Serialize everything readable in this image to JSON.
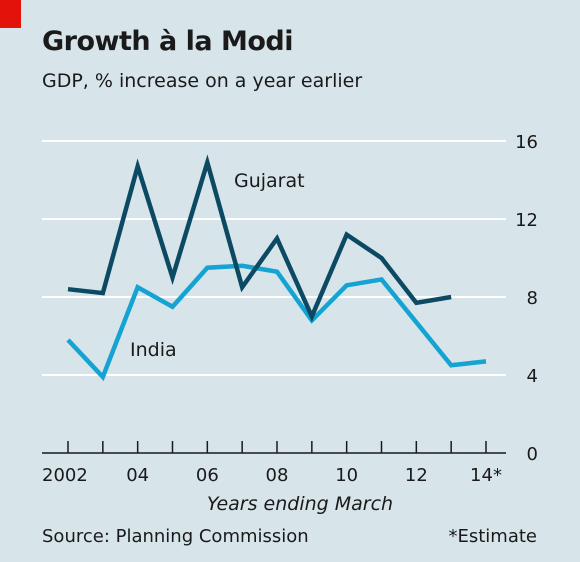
{
  "header": {
    "title": "Growth à la Modi",
    "subtitle": "GDP, % increase on a year earlier"
  },
  "footer": {
    "source": "Source: Planning Commission",
    "note": "*Estimate"
  },
  "colors": {
    "background": "#d7e4ea",
    "accent_tab": "#e3120b",
    "gujarat": "#0c4a63",
    "india": "#14a3d2",
    "gridline": "#ffffff",
    "axis": "#1a1a1a"
  },
  "chart_data": {
    "type": "line",
    "title": "Growth à la Modi",
    "subtitle": "GDP, % increase on a year earlier",
    "xlabel": "Years ending March",
    "ylabel": "",
    "x": [
      2002,
      2003,
      2004,
      2005,
      2006,
      2007,
      2008,
      2009,
      2010,
      2011,
      2012,
      2013,
      2014
    ],
    "xlim": [
      2002,
      2014
    ],
    "ylim": [
      0,
      16
    ],
    "yticks": [
      0,
      4,
      8,
      12,
      16
    ],
    "ytick_labels": [
      "0",
      "4",
      "8",
      "12",
      "16"
    ],
    "xticks": [
      2002,
      2004,
      2006,
      2008,
      2010,
      2012,
      2014
    ],
    "xtick_labels": [
      "2002",
      "04",
      "06",
      "08",
      "10",
      "12",
      "14*"
    ],
    "grid": true,
    "legend": "inline labels",
    "series": [
      {
        "name": "Gujarat",
        "x": [
          2002,
          2003,
          2004,
          2005,
          2006,
          2007,
          2008,
          2009,
          2010,
          2011,
          2012,
          2013
        ],
        "values": [
          8.4,
          8.2,
          14.7,
          9.0,
          14.9,
          8.5,
          11.0,
          7.0,
          11.2,
          10.0,
          7.7,
          8.0
        ]
      },
      {
        "name": "India",
        "x": [
          2002,
          2003,
          2004,
          2005,
          2006,
          2007,
          2008,
          2009,
          2010,
          2011,
          2012,
          2013,
          2014
        ],
        "values": [
          5.8,
          3.9,
          8.5,
          7.5,
          9.5,
          9.6,
          9.3,
          6.8,
          8.6,
          8.9,
          6.7,
          4.5,
          4.7
        ]
      }
    ]
  }
}
